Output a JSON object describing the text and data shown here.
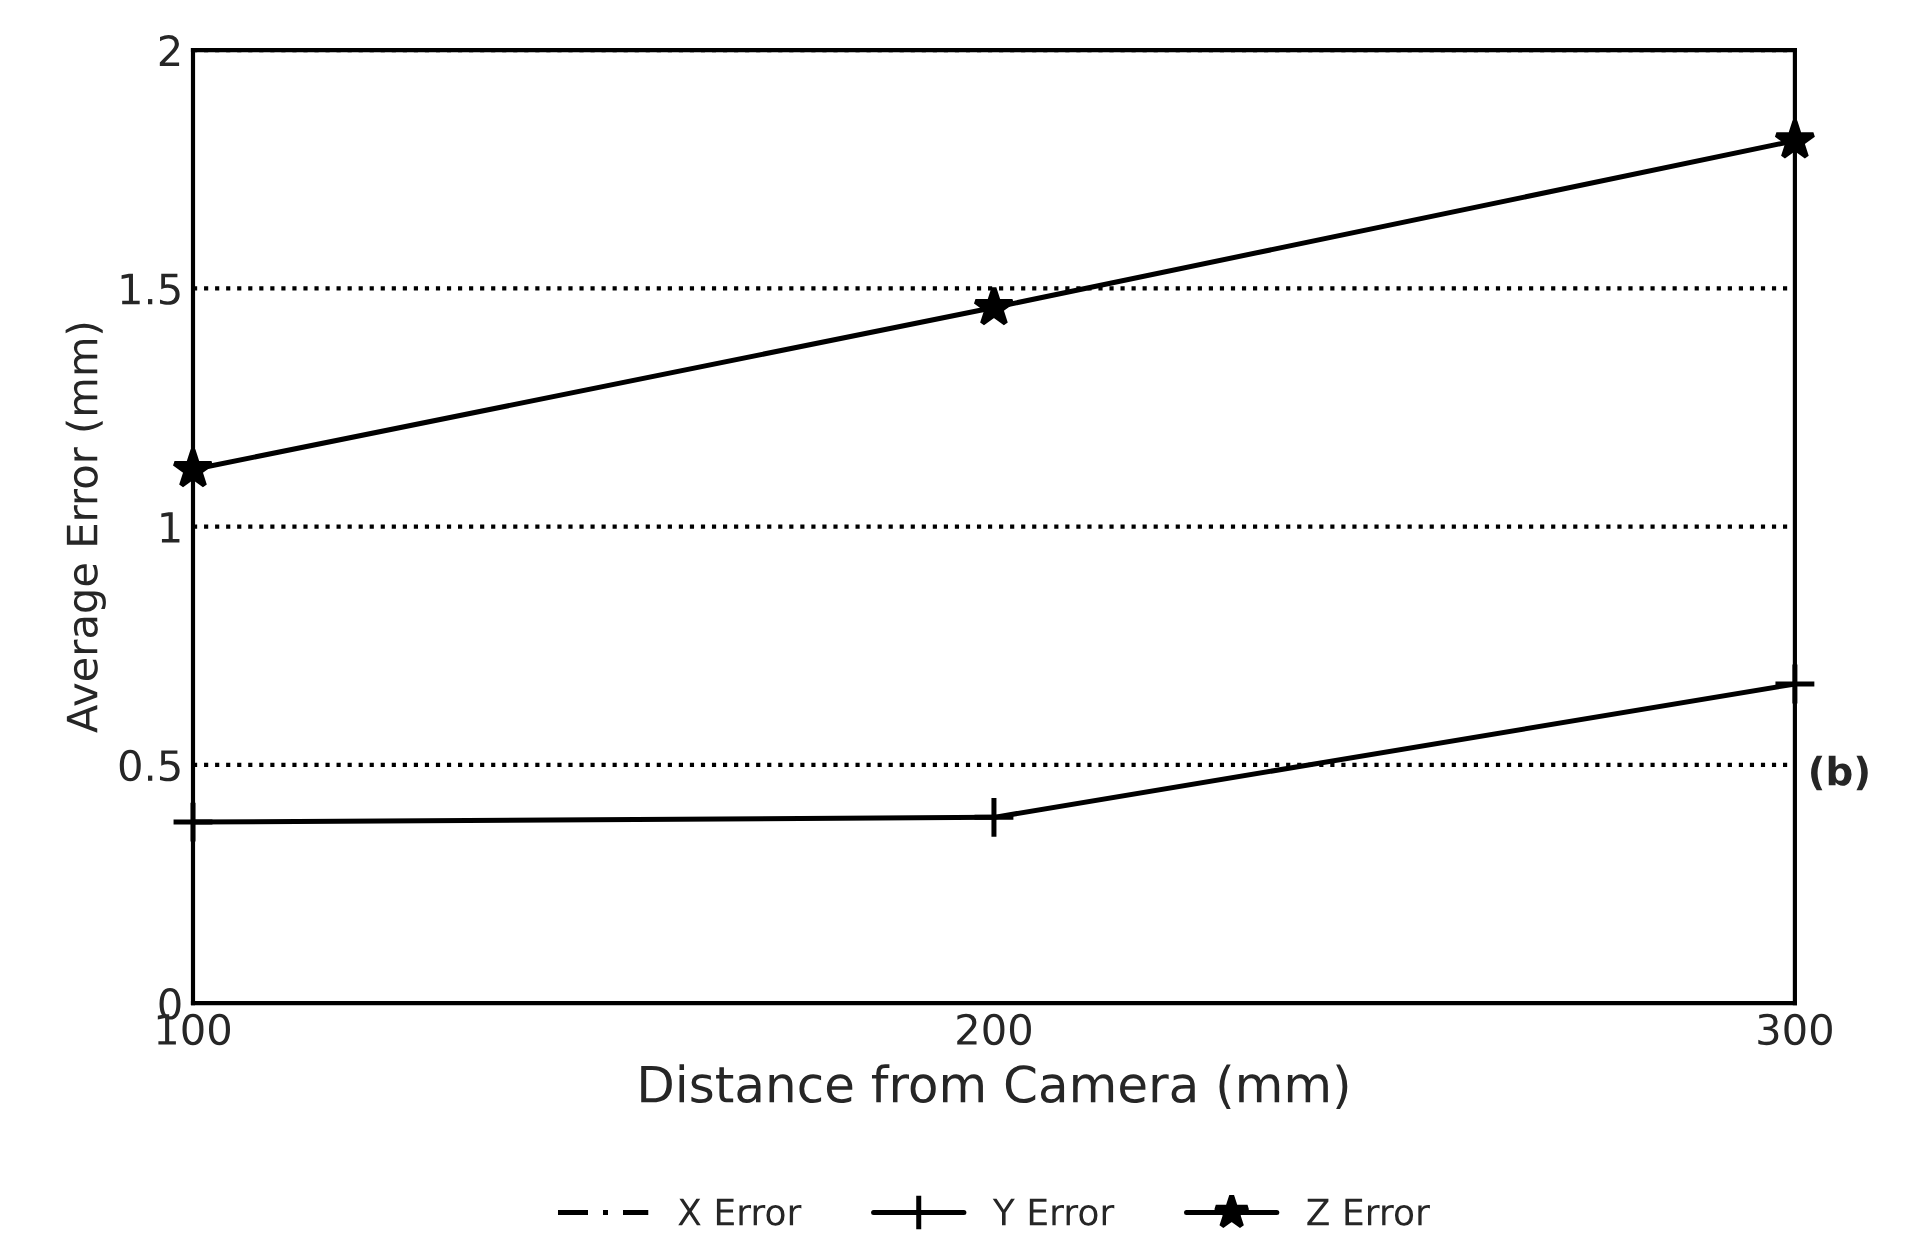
{
  "chart_data": {
    "type": "line",
    "xlabel": "Distance from Camera (mm)",
    "ylabel": "Average Error (mm)",
    "x": [
      100,
      200,
      300
    ],
    "series": [
      {
        "name": "X Error",
        "color": "#000000",
        "values": [
          null,
          null,
          null
        ],
        "line_style": "dashed",
        "marker": "none"
      },
      {
        "name": "Y Error",
        "color": "#000000",
        "values": [
          0.38,
          0.39,
          0.67
        ],
        "line_style": "solid",
        "marker": "cross"
      },
      {
        "name": "Z Error",
        "color": "#000000",
        "values": [
          1.12,
          1.46,
          1.81
        ],
        "line_style": "solid",
        "marker": "star"
      }
    ],
    "xlim": [
      100,
      300
    ],
    "xticks": [
      100,
      200,
      300
    ],
    "ylim": [
      0,
      2
    ],
    "yticks": [
      0,
      0.5,
      1,
      1.5,
      2
    ],
    "grid": "y",
    "legend": "bottom",
    "annotations": [
      "(b)"
    ]
  }
}
